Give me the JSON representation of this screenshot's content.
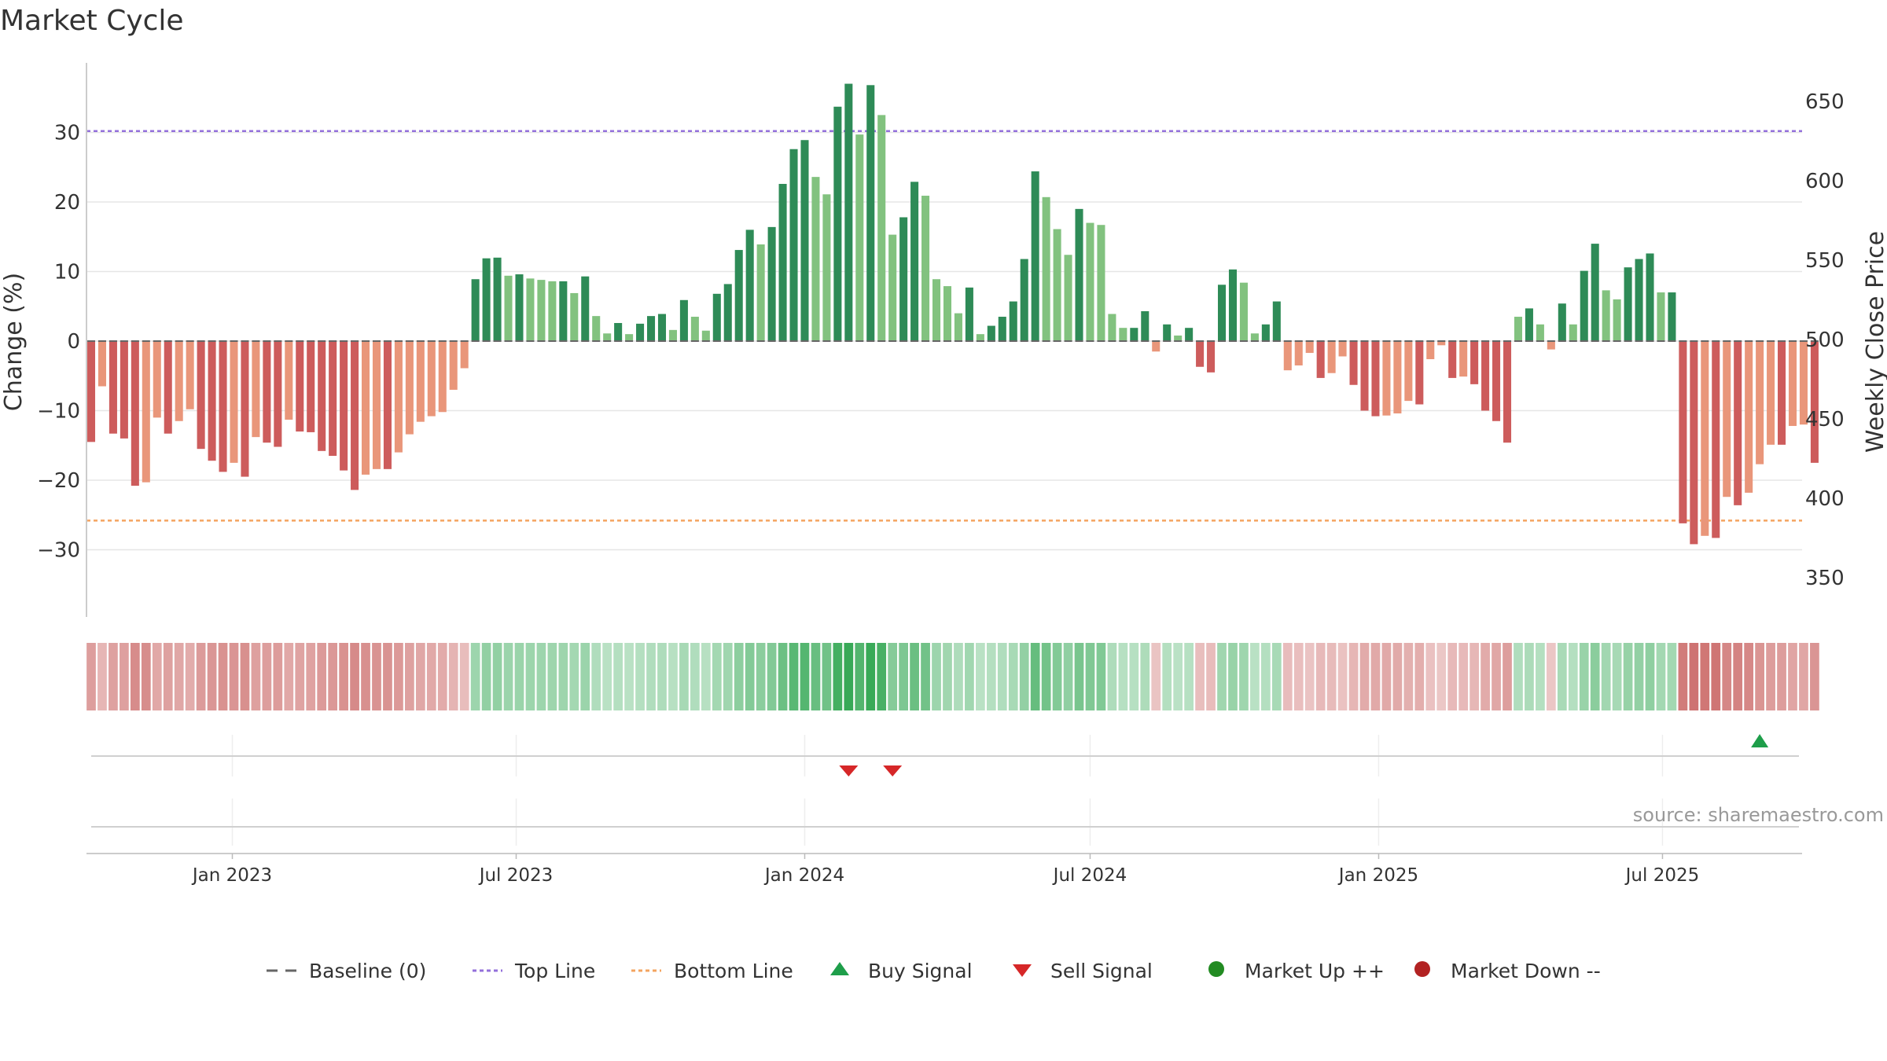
{
  "chart_data": {
    "title": "Market Cycle",
    "type": "bar",
    "ylabel_left": "Change (%)",
    "ylabel_right": "Weekly Close Price",
    "ylim_left": [
      -40,
      40
    ],
    "yticks_left": [
      30,
      20,
      10,
      0,
      -10,
      -20,
      -30
    ],
    "ytick_labels_left": [
      "30",
      "20",
      "10",
      "0",
      "−10",
      "−20",
      "−30"
    ],
    "ylim_right": [
      325,
      655
    ],
    "yticks_right": [
      650,
      600,
      550,
      500,
      450,
      400,
      350
    ],
    "ytick_labels_right": [
      "650",
      "600",
      "550",
      "500",
      "450",
      "400",
      "350"
    ],
    "x_start": "2022-10-03",
    "week_days": 7,
    "x_end": "2025-09-22",
    "xticks": [
      "2023-01-01",
      "2023-07-01",
      "2024-01-01",
      "2024-07-01",
      "2025-01-01",
      "2025-07-01"
    ],
    "xtick_labels": [
      "Jan 2023",
      "Jul 2023",
      "Jan 2024",
      "Jul 2024",
      "Jan 2025",
      "Jul 2025"
    ],
    "top_line": 30.2,
    "bottom_line": -25.8,
    "values": [
      -14.5,
      -6.5,
      -13.3,
      -14.0,
      -20.8,
      -20.3,
      -11.0,
      -13.3,
      -11.5,
      -9.8,
      -15.5,
      -17.2,
      -18.8,
      -17.5,
      -19.5,
      -13.8,
      -14.6,
      -15.2,
      -11.3,
      -13.0,
      -13.1,
      -15.8,
      -16.5,
      -18.6,
      -21.4,
      -19.2,
      -18.4,
      -18.4,
      -16.0,
      -13.4,
      -11.6,
      -10.8,
      -10.2,
      -7.0,
      -3.9,
      8.9,
      11.9,
      12.0,
      9.4,
      9.6,
      9.0,
      8.8,
      8.6,
      8.6,
      6.9,
      9.3,
      3.6,
      1.1,
      2.6,
      1.0,
      2.5,
      3.6,
      3.9,
      1.6,
      5.9,
      3.5,
      1.5,
      6.8,
      8.2,
      13.1,
      16.0,
      13.9,
      16.4,
      22.6,
      27.6,
      28.9,
      23.6,
      21.1,
      33.7,
      37.0,
      29.7,
      36.8,
      32.5,
      15.3,
      17.8,
      22.9,
      20.9,
      8.9,
      7.9,
      4.0,
      7.7,
      1.0,
      2.2,
      3.5,
      5.7,
      11.8,
      24.4,
      20.7,
      16.1,
      12.4,
      19.0,
      17.0,
      16.7,
      3.9,
      1.9,
      1.9,
      4.3,
      -1.5,
      2.4,
      0.8,
      1.9,
      -3.7,
      -4.5,
      8.1,
      10.3,
      8.4,
      1.1,
      2.4,
      5.7,
      -4.2,
      -3.5,
      -1.7,
      -5.3,
      -4.6,
      -2.2,
      -6.3,
      -10.0,
      -10.8,
      -10.7,
      -10.4,
      -8.6,
      -9.1,
      -2.6,
      -0.6,
      -5.3,
      -5.1,
      -6.2,
      -10.0,
      -11.5,
      -14.6,
      3.5,
      4.7,
      2.4,
      -1.2,
      5.4,
      2.4,
      10.1,
      14.0,
      7.3,
      6.0,
      10.6,
      11.8,
      12.6,
      7.0,
      7.0,
      -26.2,
      -29.2,
      -28.0,
      -28.3,
      -22.4,
      -23.6,
      -21.8,
      -17.7,
      -14.9,
      -14.9,
      -12.2,
      -12.0,
      -17.5
    ],
    "signals": {
      "buy": [
        {
          "week": 152
        }
      ],
      "sell": [
        {
          "week": 69
        },
        {
          "week": 73
        }
      ],
      "market_up": [],
      "market_down": []
    },
    "colors": {
      "up_strong": "#2e8b57",
      "up_light": "#82c27f",
      "down_strong": "#cd5c5c",
      "down_light": "#e9967a",
      "top_line": "#9370db",
      "bottom_line": "#f4a460",
      "baseline": "#666666",
      "buy": "#1e9e4a",
      "sell": "#d62728",
      "market_up": "#228b22",
      "market_down": "#b22222",
      "heat_pos": "#22a045",
      "heat_neg": "#c04a48"
    },
    "legend": [
      {
        "label": "Baseline (0)",
        "marker": "dash",
        "color": "#666666"
      },
      {
        "label": "Top Line",
        "marker": "dotted",
        "color": "#9370db"
      },
      {
        "label": "Bottom Line",
        "marker": "dotted",
        "color": "#f4a460"
      },
      {
        "label": "Buy Signal",
        "marker": "triangle-up",
        "color": "#1e9e4a"
      },
      {
        "label": "Sell Signal",
        "marker": "triangle-down",
        "color": "#d62728"
      },
      {
        "label": "Market Up ++",
        "marker": "circle",
        "color": "#228b22"
      },
      {
        "label": "Market Down --",
        "marker": "circle",
        "color": "#b22222"
      }
    ],
    "legend_position": "bottom-center",
    "source": "source: sharemaestro.com",
    "grid": true
  }
}
